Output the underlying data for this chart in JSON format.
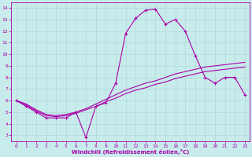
{
  "xlabel": "Windchill (Refroidissement éolien,°C)",
  "background_color": "#c8ecec",
  "grid_color": "#b0d8d8",
  "line_color": "#aa00aa",
  "x_ticks": [
    0,
    1,
    2,
    3,
    4,
    5,
    6,
    7,
    8,
    9,
    10,
    11,
    12,
    13,
    14,
    15,
    16,
    17,
    18,
    19,
    20,
    21,
    22,
    23
  ],
  "y_ticks": [
    3,
    4,
    5,
    6,
    7,
    8,
    9,
    10,
    11,
    12,
    13,
    14
  ],
  "ylim": [
    2.5,
    14.5
  ],
  "xlim": [
    -0.5,
    23.5
  ],
  "curve1_x": [
    0,
    1,
    2,
    3,
    4,
    5,
    6,
    7,
    8,
    9,
    10,
    11,
    12,
    13,
    14,
    15,
    16,
    17,
    18,
    19,
    20,
    21,
    22,
    23
  ],
  "curve1_y": [
    6.0,
    5.5,
    5.0,
    4.5,
    4.5,
    4.5,
    5.0,
    2.8,
    5.5,
    5.8,
    7.5,
    11.8,
    13.1,
    13.8,
    13.9,
    12.6,
    13.0,
    12.0,
    9.9,
    8.0,
    7.5,
    8.0,
    8.0,
    6.5
  ],
  "curve2_x": [
    0,
    1,
    2,
    3,
    4,
    5,
    6,
    7,
    8,
    9,
    10,
    11,
    12,
    13,
    14,
    15,
    16,
    17,
    18,
    19,
    20,
    21,
    22,
    23
  ],
  "curve2_y": [
    6.0,
    5.7,
    5.2,
    4.8,
    4.7,
    4.8,
    5.0,
    5.3,
    5.7,
    6.1,
    6.5,
    6.9,
    7.2,
    7.5,
    7.7,
    8.0,
    8.3,
    8.5,
    8.7,
    8.9,
    9.0,
    9.1,
    9.2,
    9.3
  ],
  "curve3_x": [
    0,
    1,
    2,
    3,
    4,
    5,
    6,
    7,
    8,
    9,
    10,
    11,
    12,
    13,
    14,
    15,
    16,
    17,
    18,
    19,
    20,
    21,
    22,
    23
  ],
  "curve3_y": [
    6.0,
    5.6,
    5.1,
    4.7,
    4.6,
    4.7,
    4.9,
    5.2,
    5.5,
    5.9,
    6.2,
    6.6,
    6.9,
    7.1,
    7.4,
    7.6,
    7.9,
    8.1,
    8.3,
    8.5,
    8.6,
    8.7,
    8.8,
    8.9
  ]
}
